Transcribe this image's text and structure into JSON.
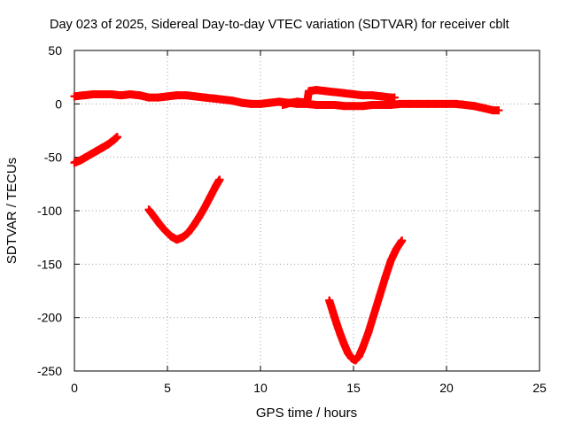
{
  "chart_data": {
    "type": "scatter",
    "title": "Day 023 of 2025, Sidereal Day-to-day VTEC variation (SDTVAR) for receiver cblt",
    "xlabel": "GPS time / hours",
    "ylabel": "SDTVAR / TECUs",
    "xlim": [
      0,
      25
    ],
    "ylim": [
      -250,
      50
    ],
    "xticks": [
      0,
      5,
      10,
      15,
      20,
      25
    ],
    "yticks": [
      50,
      0,
      -50,
      -100,
      -150,
      -200,
      -250
    ],
    "grid": true,
    "marker": "plus",
    "series_color": "#ff0000",
    "series": [
      {
        "points": [
          [
            0,
            7
          ],
          [
            0.5,
            8
          ],
          [
            1,
            9
          ],
          [
            1.5,
            9
          ],
          [
            2,
            9
          ],
          [
            2.5,
            8
          ],
          [
            3,
            9
          ],
          [
            3.5,
            8
          ],
          [
            4,
            6
          ],
          [
            4.5,
            6
          ],
          [
            5,
            7
          ],
          [
            5.5,
            8
          ],
          [
            6,
            8
          ],
          [
            6.5,
            7
          ],
          [
            7,
            6
          ],
          [
            7.5,
            5
          ],
          [
            8,
            4
          ],
          [
            8.5,
            3
          ],
          [
            9,
            1
          ],
          [
            9.5,
            0
          ],
          [
            10,
            0
          ],
          [
            10.5,
            1
          ],
          [
            11,
            2
          ],
          [
            11.5,
            1
          ],
          [
            12,
            0
          ],
          [
            12.5,
            0
          ],
          [
            13,
            -1
          ],
          [
            13.5,
            -1
          ],
          [
            14,
            -1
          ],
          [
            14.5,
            -2
          ],
          [
            15,
            -2
          ],
          [
            15.5,
            -2
          ],
          [
            16,
            -1
          ],
          [
            16.5,
            -1
          ],
          [
            17,
            -1
          ],
          [
            17.5,
            0
          ],
          [
            18,
            0
          ],
          [
            18.5,
            0
          ],
          [
            19,
            0
          ],
          [
            19.5,
            0
          ],
          [
            20,
            0
          ],
          [
            20.5,
            0
          ],
          [
            21,
            -1
          ],
          [
            21.5,
            -2
          ],
          [
            22,
            -4
          ],
          [
            22.5,
            -6
          ],
          [
            22.8,
            -6
          ]
        ]
      },
      {
        "points": [
          [
            11.2,
            -1
          ],
          [
            11.6,
            1
          ],
          [
            12,
            2
          ],
          [
            12.5,
            1
          ],
          [
            12.6,
            12
          ],
          [
            13,
            13
          ],
          [
            13.5,
            12
          ],
          [
            14,
            11
          ],
          [
            14.5,
            10
          ],
          [
            15,
            9
          ],
          [
            15.5,
            8
          ],
          [
            16,
            8
          ],
          [
            16.5,
            7
          ],
          [
            17,
            6
          ],
          [
            17.2,
            6
          ]
        ]
      },
      {
        "points": [
          [
            0,
            -55
          ],
          [
            0.3,
            -53
          ],
          [
            0.6,
            -50
          ],
          [
            0.9,
            -47
          ],
          [
            1.2,
            -44
          ],
          [
            1.5,
            -41
          ],
          [
            1.8,
            -38
          ],
          [
            2.1,
            -34
          ],
          [
            2.3,
            -31
          ]
        ]
      },
      {
        "points": [
          [
            4,
            -99
          ],
          [
            4.3,
            -106
          ],
          [
            4.6,
            -113
          ],
          [
            4.9,
            -119
          ],
          [
            5.2,
            -124
          ],
          [
            5.5,
            -127
          ],
          [
            5.8,
            -125
          ],
          [
            6.1,
            -121
          ],
          [
            6.4,
            -114
          ],
          [
            6.7,
            -106
          ],
          [
            7,
            -97
          ],
          [
            7.3,
            -87
          ],
          [
            7.6,
            -77
          ],
          [
            7.8,
            -71
          ]
        ]
      },
      {
        "points": [
          [
            13.7,
            -184
          ],
          [
            13.9,
            -195
          ],
          [
            14.1,
            -206
          ],
          [
            14.3,
            -216
          ],
          [
            14.5,
            -225
          ],
          [
            14.7,
            -233
          ],
          [
            14.9,
            -238
          ],
          [
            15.1,
            -240
          ],
          [
            15.3,
            -236
          ],
          [
            15.5,
            -228
          ],
          [
            15.8,
            -214
          ],
          [
            16.1,
            -197
          ],
          [
            16.4,
            -180
          ],
          [
            16.7,
            -163
          ],
          [
            17,
            -147
          ],
          [
            17.3,
            -136
          ],
          [
            17.6,
            -128
          ]
        ]
      }
    ]
  }
}
